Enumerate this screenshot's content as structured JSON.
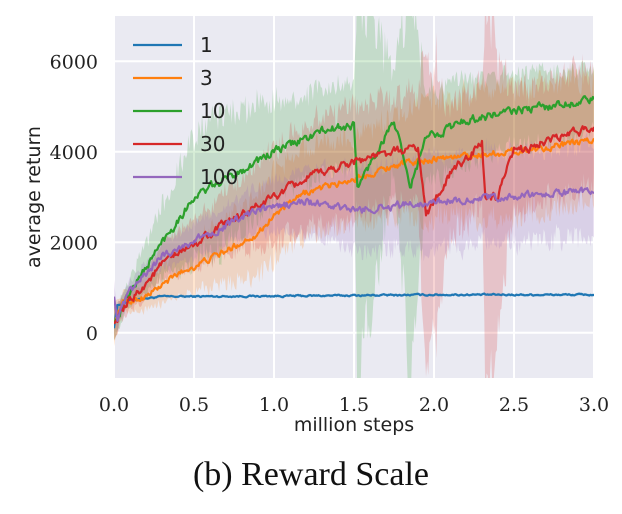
{
  "caption": "(b) Reward Scale",
  "chart_data": {
    "type": "line",
    "title": "",
    "xlabel": "million steps",
    "ylabel": "average return",
    "xlim": [
      0.0,
      3.0
    ],
    "ylim": [
      -1000,
      7000
    ],
    "xticks": [
      0.0,
      0.5,
      1.0,
      1.5,
      2.0,
      2.5,
      3.0
    ],
    "xtick_labels": [
      "0.0",
      "0.5",
      "1.0",
      "1.5",
      "2.0",
      "2.5",
      "3.0"
    ],
    "yticks": [
      0,
      2000,
      4000,
      6000
    ],
    "ytick_labels": [
      "0",
      "2000",
      "4000",
      "6000"
    ],
    "grid": true,
    "legend_position": "top-left",
    "shaded_bands": "mean ± spread across runs",
    "series": [
      {
        "name": "1",
        "color": "#1f77b4",
        "noise": 15,
        "x": [
          0,
          0.02,
          0.1,
          0.3,
          1.0,
          2.0,
          3.0
        ],
        "y": [
          100,
          600,
          720,
          800,
          810,
          840,
          840
        ],
        "band": [
          120,
          80,
          40,
          30,
          30,
          30,
          30
        ]
      },
      {
        "name": "3",
        "color": "#ff7f0e",
        "noise": 60,
        "x": [
          0,
          0.05,
          0.2,
          0.4,
          0.7,
          0.9,
          1.0,
          1.2,
          1.5,
          1.75,
          2.0,
          2.5,
          3.0
        ],
        "y": [
          200,
          650,
          800,
          1300,
          1800,
          2200,
          2600,
          3100,
          3400,
          3700,
          3850,
          4000,
          4250
        ],
        "band": [
          400,
          200,
          300,
          500,
          700,
          900,
          1000,
          1000,
          900,
          1100,
          1300,
          1400,
          1300
        ]
      },
      {
        "name": "10",
        "color": "#2ca02c",
        "noise": 80,
        "x": [
          0,
          0.1,
          0.3,
          0.5,
          0.7,
          1.0,
          1.3,
          1.5,
          1.52,
          1.75,
          1.85,
          1.95,
          2.2,
          2.5,
          3.0
        ],
        "y": [
          200,
          900,
          2000,
          3000,
          3400,
          4000,
          4450,
          4600,
          3200,
          4700,
          3200,
          4300,
          4700,
          4900,
          5150
        ],
        "band": [
          300,
          300,
          800,
          1400,
          1500,
          1100,
          900,
          900,
          4500,
          1000,
          4500,
          1000,
          900,
          800,
          700
        ]
      },
      {
        "name": "30",
        "color": "#d62728",
        "noise": 80,
        "x": [
          0,
          0.1,
          0.3,
          0.6,
          0.9,
          1.2,
          1.5,
          1.9,
          1.95,
          2.1,
          2.3,
          2.32,
          2.4,
          2.5,
          3.0
        ],
        "y": [
          200,
          700,
          1500,
          2200,
          2800,
          3400,
          3800,
          4100,
          2600,
          3500,
          4200,
          3000,
          3000,
          4000,
          4550
        ],
        "band": [
          300,
          200,
          400,
          600,
          900,
          1200,
          1200,
          1200,
          4000,
          1500,
          1300,
          4500,
          3000,
          1300,
          1300
        ]
      },
      {
        "name": "100",
        "color": "#9467bd",
        "noise": 70,
        "x": [
          0,
          0.02,
          0.1,
          0.3,
          0.6,
          0.9,
          1.2,
          1.5,
          2.0,
          2.5,
          3.0
        ],
        "y": [
          800,
          300,
          900,
          1700,
          2200,
          2700,
          2900,
          2700,
          2900,
          3000,
          3150
        ],
        "band": [
          300,
          200,
          200,
          300,
          400,
          500,
          700,
          900,
          1000,
          1000,
          1000
        ]
      }
    ]
  }
}
